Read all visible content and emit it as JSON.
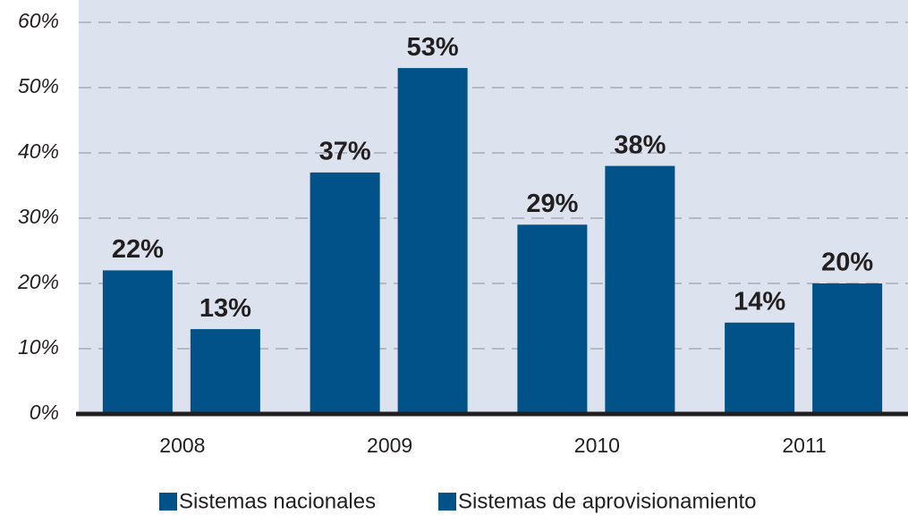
{
  "chart_data": {
    "type": "bar",
    "categories": [
      "2008",
      "2009",
      "2010",
      "2011"
    ],
    "series": [
      {
        "name": "Sistemas nacionales",
        "color": "#005288",
        "values": [
          22,
          37,
          29,
          14
        ],
        "value_labels": [
          "22%",
          "37%",
          "29%",
          "14%"
        ]
      },
      {
        "name": "Sistemas de aprovisionamiento",
        "color": "#005288",
        "values": [
          13,
          53,
          38,
          20
        ],
        "value_labels": [
          "13%",
          "53%",
          "38%",
          "20%"
        ]
      }
    ],
    "ylim": [
      0,
      60
    ],
    "yticks": [
      {
        "value": 0,
        "label": "0%"
      },
      {
        "value": 10,
        "label": "10%"
      },
      {
        "value": 20,
        "label": "20%"
      },
      {
        "value": 30,
        "label": "30%"
      },
      {
        "value": 40,
        "label": "40%"
      },
      {
        "value": 50,
        "label": "50%"
      },
      {
        "value": 60,
        "label": "60%"
      }
    ],
    "grid": true,
    "legend": "bottom"
  }
}
